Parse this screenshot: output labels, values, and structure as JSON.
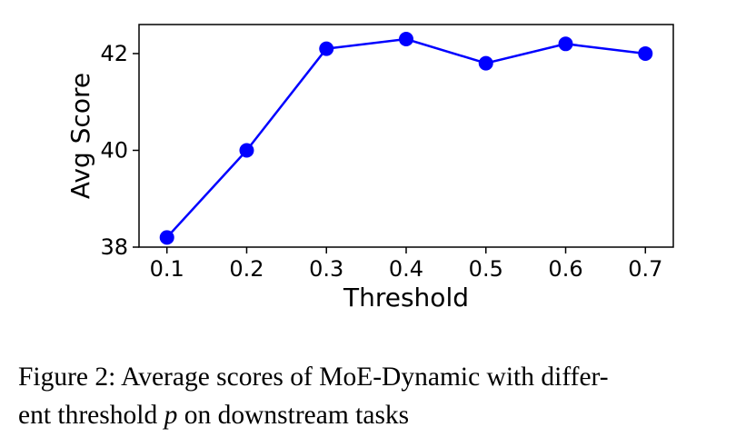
{
  "chart_data": {
    "type": "line",
    "x": [
      0.1,
      0.2,
      0.3,
      0.4,
      0.5,
      0.6,
      0.7
    ],
    "x_tick_labels": [
      "0.1",
      "0.2",
      "0.3",
      "0.4",
      "0.5",
      "0.6",
      "0.7"
    ],
    "series": [
      {
        "values": [
          38.2,
          40.0,
          42.1,
          42.3,
          41.8,
          42.2,
          42.0
        ],
        "color": "#0000ff"
      }
    ],
    "xlabel": "Threshold",
    "ylabel": "Avg Score",
    "y_ticks": [
      38,
      40,
      42
    ],
    "y_tick_labels": [
      "38",
      "40",
      "42"
    ],
    "xlim": [
      0.065,
      0.735
    ],
    "ylim": [
      38,
      42.6
    ],
    "grid": false,
    "marker": "circle"
  },
  "caption": {
    "prefix": "Figure 2: Average scores of MoE-Dynamic with differ-",
    "line2_start": "ent threshold ",
    "math_var": "p",
    "line2_end": " on downstream tasks"
  }
}
